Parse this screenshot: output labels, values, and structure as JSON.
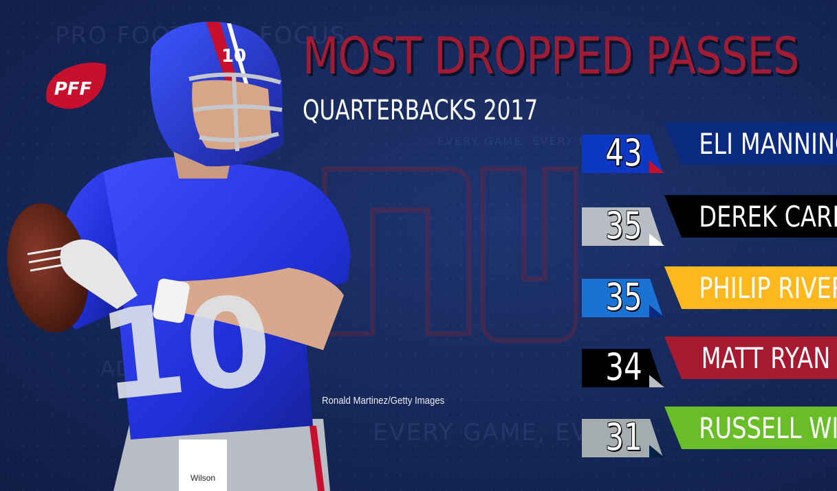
{
  "header": {
    "title": "MOST DROPPED PASSES",
    "subtitle": "QUARTERBACKS  2017"
  },
  "background": {
    "words": [
      "PRO FOOTBALL FOCUS",
      "EVERY GAME, EVERY PLAYER",
      "EVERY GAME, EVERY",
      "AD"
    ]
  },
  "logo": {
    "text": "PFF",
    "color": "#c8102e"
  },
  "player": {
    "jersey_number": "10",
    "brand": "Wilson"
  },
  "photo_credit": "Ronald Martinez/Getty Images",
  "rankings": [
    {
      "value": "43",
      "name": "ELI MANNING",
      "number_color": "#0d38c4",
      "name_color": "#0a2a80",
      "fold_color": "#c8102e"
    },
    {
      "value": "35",
      "name": "DEREK CARR",
      "number_color": "#b9bec4",
      "name_color": "#000000",
      "fold_color": "#ffffff"
    },
    {
      "value": "35",
      "name": "PHILIP RIVERS",
      "number_color": "#1a73d4",
      "name_color": "#ffb81c",
      "fold_color": "#0a2a80"
    },
    {
      "value": "34",
      "name": "MATT RYAN",
      "number_color": "#000000",
      "name_color": "#a71930",
      "fold_color": "#b9bec4"
    },
    {
      "value": "31",
      "name": "RUSSELL WILSON",
      "number_color": "#a5acaf",
      "name_color": "#69be28",
      "fold_color": "#002244"
    }
  ]
}
